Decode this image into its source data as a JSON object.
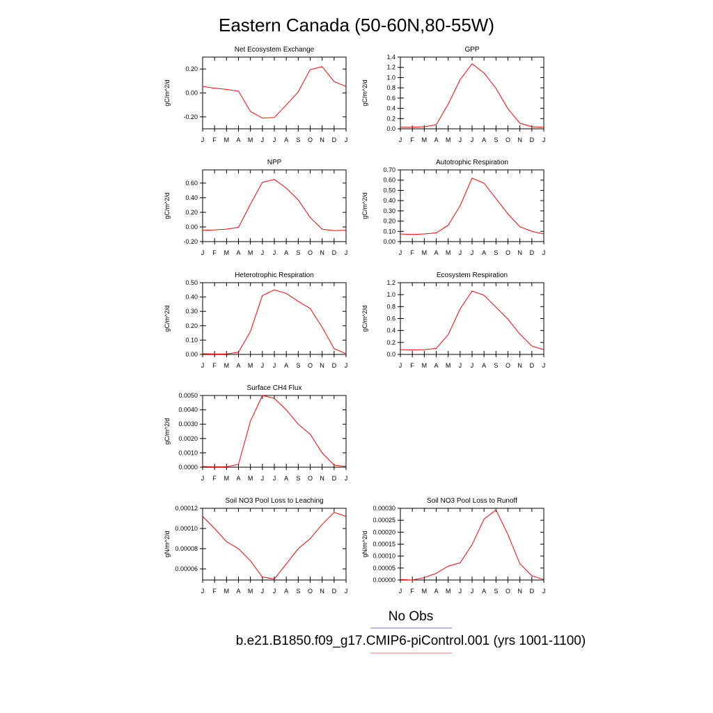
{
  "figure": {
    "title": "Eastern Canada (50-60N,80-55W)",
    "legend": [
      {
        "label": "No Obs",
        "color": "#6f6fff"
      },
      {
        "label": "b.e21.B1850.f09_g17.CMIP6-piControl.001 (yrs 1001-1100)",
        "color": "#ff6f6f"
      }
    ],
    "series_color": "#ff0000"
  },
  "chart_data": [
    {
      "type": "line",
      "title": "Net Ecosystem Exchange",
      "ylabel": "gC/m^2/d",
      "xticks": [
        "J",
        "F",
        "M",
        "A",
        "M",
        "J",
        "J",
        "A",
        "S",
        "O",
        "N",
        "D",
        "J"
      ],
      "yticks": [
        "0.20",
        "0.00",
        "-0.20"
      ],
      "ytick_values": [
        0.2,
        0.0,
        -0.2
      ],
      "ylim": [
        -0.3,
        0.3
      ],
      "values": [
        0.055,
        0.04,
        0.03,
        0.015,
        -0.155,
        -0.21,
        -0.205,
        -0.1,
        0.01,
        0.195,
        0.22,
        0.095,
        0.055
      ]
    },
    {
      "type": "line",
      "title": "GPP",
      "ylabel": "gC/m^2/d",
      "xticks": [
        "J",
        "F",
        "M",
        "A",
        "M",
        "J",
        "J",
        "A",
        "S",
        "O",
        "N",
        "D",
        "J"
      ],
      "yticks": [
        "1.4",
        "1.2",
        "1.0",
        "0.8",
        "0.6",
        "0.4",
        "0.2",
        "0.0"
      ],
      "ytick_values": [
        1.4,
        1.2,
        1.0,
        0.8,
        0.6,
        0.4,
        0.2,
        0.0
      ],
      "ylim": [
        0,
        1.4
      ],
      "values": [
        0.03,
        0.03,
        0.04,
        0.08,
        0.48,
        0.96,
        1.27,
        1.09,
        0.79,
        0.39,
        0.11,
        0.04,
        0.03
      ]
    },
    {
      "type": "line",
      "title": "NPP",
      "ylabel": "gC/m^2/d",
      "xticks": [
        "J",
        "F",
        "M",
        "A",
        "M",
        "J",
        "J",
        "A",
        "S",
        "O",
        "N",
        "D",
        "J"
      ],
      "yticks": [
        "0.60",
        "0.40",
        "0.20",
        "0.00",
        "-0.20"
      ],
      "ytick_values": [
        0.6,
        0.4,
        0.2,
        0.0,
        -0.2
      ],
      "ylim": [
        -0.2,
        0.78
      ],
      "values": [
        -0.045,
        -0.04,
        -0.03,
        -0.005,
        0.31,
        0.61,
        0.65,
        0.53,
        0.37,
        0.13,
        -0.03,
        -0.05,
        -0.045
      ]
    },
    {
      "type": "line",
      "title": "Autotrophic Respiration",
      "ylabel": "gC/m^2/d",
      "xticks": [
        "J",
        "F",
        "M",
        "A",
        "M",
        "J",
        "J",
        "A",
        "S",
        "O",
        "N",
        "D",
        "J"
      ],
      "yticks": [
        "0.70",
        "0.60",
        "0.50",
        "0.40",
        "0.30",
        "0.20",
        "0.10",
        "0.00"
      ],
      "ytick_values": [
        0.7,
        0.6,
        0.5,
        0.4,
        0.3,
        0.2,
        0.1,
        0.0
      ],
      "ylim": [
        0,
        0.7
      ],
      "values": [
        0.075,
        0.07,
        0.075,
        0.085,
        0.16,
        0.35,
        0.62,
        0.57,
        0.42,
        0.27,
        0.145,
        0.1,
        0.075
      ]
    },
    {
      "type": "line",
      "title": "Heterotrophic Respiration",
      "ylabel": "gC/m^2/d",
      "xticks": [
        "J",
        "F",
        "M",
        "A",
        "M",
        "J",
        "J",
        "A",
        "S",
        "O",
        "N",
        "D",
        "J"
      ],
      "yticks": [
        "0.50",
        "0.40",
        "0.30",
        "0.20",
        "0.10",
        "0.00"
      ],
      "ytick_values": [
        0.5,
        0.4,
        0.3,
        0.2,
        0.1,
        0.0
      ],
      "ylim": [
        0,
        0.5
      ],
      "values": [
        0.005,
        0.003,
        0.003,
        0.015,
        0.16,
        0.41,
        0.45,
        0.425,
        0.37,
        0.32,
        0.19,
        0.04,
        0.005
      ]
    },
    {
      "type": "line",
      "title": "Ecosystem Respiration",
      "ylabel": "gC/m^2/d",
      "xticks": [
        "J",
        "F",
        "M",
        "A",
        "M",
        "J",
        "J",
        "A",
        "S",
        "O",
        "N",
        "D",
        "J"
      ],
      "yticks": [
        "1.2",
        "1.0",
        "0.8",
        "0.6",
        "0.4",
        "0.2",
        "0.0"
      ],
      "ytick_values": [
        1.2,
        1.0,
        0.8,
        0.6,
        0.4,
        0.2,
        0.0
      ],
      "ylim": [
        0,
        1.2
      ],
      "values": [
        0.08,
        0.075,
        0.08,
        0.1,
        0.33,
        0.76,
        1.06,
        0.99,
        0.79,
        0.59,
        0.34,
        0.14,
        0.08
      ]
    },
    {
      "type": "line",
      "title": "Surface CH4 Flux",
      "ylabel": "gC/m^2/d",
      "xticks": [
        "J",
        "F",
        "M",
        "A",
        "M",
        "J",
        "J",
        "A",
        "S",
        "O",
        "N",
        "D",
        "J"
      ],
      "yticks": [
        "0.0050",
        "0.0040",
        "0.0030",
        "0.0020",
        "0.0010",
        "0.0000"
      ],
      "ytick_values": [
        0.005,
        0.004,
        0.003,
        0.002,
        0.001,
        0.0
      ],
      "ylim": [
        0,
        0.005
      ],
      "values": [
        5e-05,
        3e-05,
        3e-05,
        0.0002,
        0.0032,
        0.005,
        0.0048,
        0.004,
        0.003,
        0.0023,
        0.001,
        0.00015,
        5e-05
      ]
    },
    {
      "type": "line",
      "title": "Soil NO3 Pool Loss to Leaching",
      "ylabel": "gN/m^2/d",
      "xticks": [
        "J",
        "F",
        "M",
        "A",
        "M",
        "J",
        "J",
        "A",
        "S",
        "O",
        "N",
        "D",
        "J"
      ],
      "yticks": [
        "0.00012",
        "0.00010",
        "0.00008",
        "0.00006"
      ],
      "ytick_values": [
        0.00012,
        0.0001,
        8e-05,
        6e-05
      ],
      "ylim": [
        4.9e-05,
        0.00012
      ],
      "values": [
        0.000112,
        0.0001,
        8.7e-05,
        8e-05,
        6.8e-05,
        5.2e-05,
        5e-05,
        6.5e-05,
        8e-05,
        9e-05,
        0.000104,
        0.000116,
        0.000112
      ]
    },
    {
      "type": "line",
      "title": "Soil NO3 Pool Loss to Runoff",
      "ylabel": "gN/m^2/d",
      "xticks": [
        "J",
        "F",
        "M",
        "A",
        "M",
        "J",
        "J",
        "A",
        "S",
        "O",
        "N",
        "D",
        "J"
      ],
      "yticks": [
        "0.00030",
        "0.00025",
        "0.00020",
        "0.00015",
        "0.00010",
        "0.00005",
        "0.00000"
      ],
      "ytick_values": [
        0.0003,
        0.00025,
        0.0002,
        0.00015,
        0.0001,
        5e-05,
        0.0
      ],
      "ylim": [
        0,
        0.0003
      ],
      "values": [
        2e-06,
        0.0,
        1e-05,
        2.8e-05,
        5.8e-05,
        7.2e-05,
        0.000148,
        0.000255,
        0.000293,
        0.00019,
        6.8e-05,
        1.8e-05,
        2e-06
      ]
    }
  ]
}
